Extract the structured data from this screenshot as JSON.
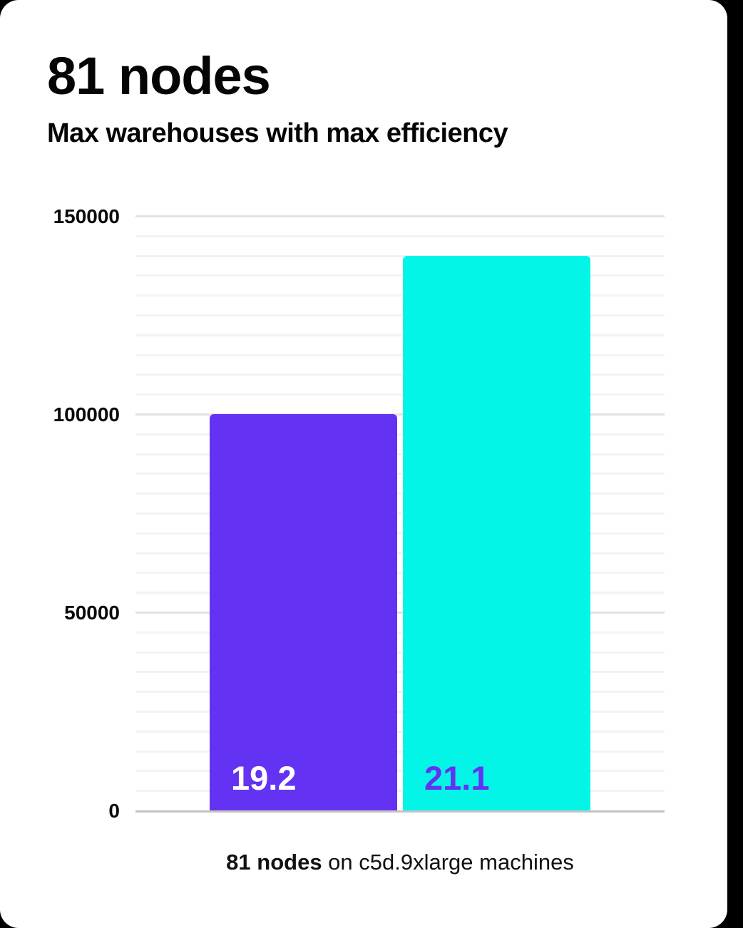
{
  "card": {
    "title": "81 nodes",
    "subtitle": "Max warehouses with max efficiency",
    "caption": {
      "bold": "81 nodes",
      "rest": " on c5d.9xlarge machines"
    }
  },
  "colors": {
    "page_background": "#000000",
    "card_background": "#ffffff",
    "text": "#050505",
    "bar1_fill": "#6432f2",
    "bar2_fill": "#03f5e8",
    "bar1_label": "#ffffff",
    "bar2_label": "#6432f2",
    "axis_line": "#c3c3c3",
    "gridline_major": "#e3e3e3",
    "gridline_minor": "#f3f3f3"
  },
  "chart_data": {
    "type": "bar",
    "title": "81 nodes",
    "subtitle": "Max warehouses with max efficiency",
    "categories": [
      "19.2",
      "21.1"
    ],
    "values": [
      100000,
      140000
    ],
    "bar_labels": [
      "19.2",
      "21.1"
    ],
    "bar_colors": [
      "#6432f2",
      "#03f5e8"
    ],
    "bar_label_colors": [
      "#ffffff",
      "#6432f2"
    ],
    "xlabel": "81 nodes on c5d.9xlarge machines",
    "ylabel": "",
    "ylim": [
      0,
      150000
    ],
    "yticks": [
      0,
      50000,
      100000,
      150000
    ],
    "ytick_labels": [
      "0",
      "50000",
      "100000",
      "150000"
    ],
    "gridline_minor_step": 5000,
    "gridline_major_step": 50000,
    "grid": true,
    "legend_position": "none"
  }
}
